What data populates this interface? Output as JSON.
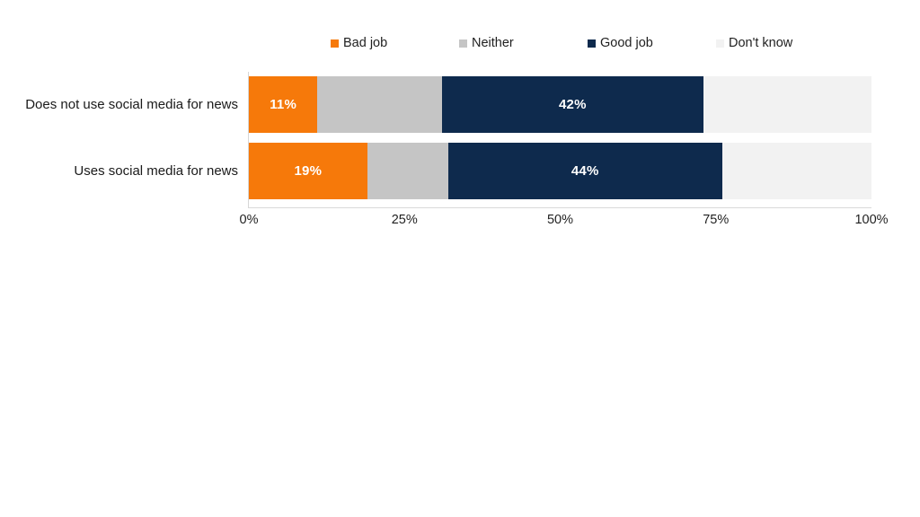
{
  "chart_data": {
    "type": "bar",
    "orientation": "horizontal",
    "stacked": true,
    "title": "",
    "xlabel": "",
    "ylabel": "",
    "xlim": [
      0,
      100
    ],
    "x_ticks": [
      "0%",
      "25%",
      "50%",
      "75%",
      "100%"
    ],
    "grid": false,
    "legend_position": "top",
    "categories": [
      "Does not use social media for news",
      "Uses social media for news"
    ],
    "series": [
      {
        "name": "Bad job",
        "color": "#f6790a",
        "values": [
          11,
          19
        ],
        "labels": [
          "11%",
          "19%"
        ]
      },
      {
        "name": "Neither",
        "color": "#c5c5c5",
        "values": [
          20,
          13
        ],
        "labels": [
          null,
          null
        ]
      },
      {
        "name": "Good job",
        "color": "#0e2a4d",
        "values": [
          42,
          44
        ],
        "labels": [
          "42%",
          "44%"
        ]
      },
      {
        "name": "Don't know",
        "color": "#f2f2f2",
        "values": [
          27,
          24
        ],
        "labels": [
          null,
          null
        ]
      }
    ]
  }
}
